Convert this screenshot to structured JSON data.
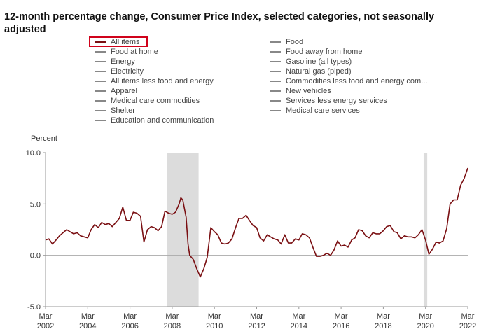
{
  "title": "12-month percentage change, Consumer Price Index, selected categories, not seasonally adjusted",
  "legend": {
    "left": [
      "All items",
      "Food at home",
      "Energy",
      "Electricity",
      "All items less food and energy",
      "Apparel",
      "Medical care commodities",
      "Shelter",
      "Education and communication"
    ],
    "right": [
      "Food",
      "Food away from home",
      "Gasoline (all types)",
      "Natural gas (piped)",
      "Commodities less food and energy com...",
      "New vehicles",
      "Services less energy services",
      "Medical care services"
    ],
    "active": "All items"
  },
  "colors": {
    "series": "#7a0f12",
    "recession": "#dcdcdc",
    "inactive_swatch": "#888888",
    "highlight": "#d0021b"
  },
  "chart_data": {
    "type": "line",
    "ylabel": "Percent",
    "ylim": [
      -5.0,
      10.0
    ],
    "yticks": [
      "10.0",
      "5.0",
      "0.0",
      "-5.0"
    ],
    "ytick_values": [
      10,
      5,
      0,
      -5
    ],
    "xticks": [
      {
        "month": "Mar",
        "year": "2002",
        "t": 2002.17
      },
      {
        "month": "Mar",
        "year": "2004",
        "t": 2004.17
      },
      {
        "month": "Mar",
        "year": "2006",
        "t": 2006.17
      },
      {
        "month": "Mar",
        "year": "2008",
        "t": 2008.17
      },
      {
        "month": "Mar",
        "year": "2010",
        "t": 2010.17
      },
      {
        "month": "Mar",
        "year": "2012",
        "t": 2012.17
      },
      {
        "month": "Mar",
        "year": "2014",
        "t": 2014.17
      },
      {
        "month": "Mar",
        "year": "2016",
        "t": 2016.17
      },
      {
        "month": "Mar",
        "year": "2018",
        "t": 2018.17
      },
      {
        "month": "Mar",
        "year": "2020",
        "t": 2020.17
      },
      {
        "month": "Mar",
        "year": "2022",
        "t": 2022.17
      }
    ],
    "xlim": [
      2002.17,
      2022.17
    ],
    "recessions": [
      [
        2007.92,
        2009.42
      ],
      [
        2020.08,
        2020.25
      ]
    ],
    "series": [
      {
        "name": "All items",
        "points": [
          [
            2002.17,
            1.5
          ],
          [
            2002.33,
            1.6
          ],
          [
            2002.5,
            1.1
          ],
          [
            2002.67,
            1.5
          ],
          [
            2002.83,
            1.9
          ],
          [
            2003.0,
            2.2
          ],
          [
            2003.17,
            2.5
          ],
          [
            2003.33,
            2.3
          ],
          [
            2003.5,
            2.1
          ],
          [
            2003.67,
            2.2
          ],
          [
            2003.83,
            1.9
          ],
          [
            2004.0,
            1.8
          ],
          [
            2004.17,
            1.7
          ],
          [
            2004.33,
            2.5
          ],
          [
            2004.5,
            3.0
          ],
          [
            2004.67,
            2.7
          ],
          [
            2004.83,
            3.2
          ],
          [
            2005.0,
            3.0
          ],
          [
            2005.17,
            3.1
          ],
          [
            2005.33,
            2.8
          ],
          [
            2005.5,
            3.2
          ],
          [
            2005.67,
            3.6
          ],
          [
            2005.83,
            4.7
          ],
          [
            2006.0,
            3.4
          ],
          [
            2006.17,
            3.4
          ],
          [
            2006.33,
            4.2
          ],
          [
            2006.5,
            4.1
          ],
          [
            2006.67,
            3.8
          ],
          [
            2006.83,
            1.3
          ],
          [
            2007.0,
            2.5
          ],
          [
            2007.17,
            2.8
          ],
          [
            2007.33,
            2.7
          ],
          [
            2007.5,
            2.4
          ],
          [
            2007.67,
            2.8
          ],
          [
            2007.83,
            4.3
          ],
          [
            2008.0,
            4.1
          ],
          [
            2008.17,
            4.0
          ],
          [
            2008.33,
            4.2
          ],
          [
            2008.5,
            5.0
          ],
          [
            2008.58,
            5.6
          ],
          [
            2008.67,
            5.4
          ],
          [
            2008.83,
            3.7
          ],
          [
            2008.92,
            1.1
          ],
          [
            2009.0,
            0.0
          ],
          [
            2009.17,
            -0.4
          ],
          [
            2009.33,
            -1.3
          ],
          [
            2009.5,
            -2.1
          ],
          [
            2009.67,
            -1.3
          ],
          [
            2009.83,
            -0.2
          ],
          [
            2010.0,
            2.7
          ],
          [
            2010.17,
            2.3
          ],
          [
            2010.33,
            2.0
          ],
          [
            2010.5,
            1.2
          ],
          [
            2010.67,
            1.1
          ],
          [
            2010.83,
            1.2
          ],
          [
            2011.0,
            1.6
          ],
          [
            2011.17,
            2.7
          ],
          [
            2011.33,
            3.6
          ],
          [
            2011.5,
            3.6
          ],
          [
            2011.67,
            3.9
          ],
          [
            2011.83,
            3.4
          ],
          [
            2012.0,
            2.9
          ],
          [
            2012.17,
            2.7
          ],
          [
            2012.33,
            1.7
          ],
          [
            2012.5,
            1.4
          ],
          [
            2012.67,
            2.0
          ],
          [
            2012.83,
            1.8
          ],
          [
            2013.0,
            1.6
          ],
          [
            2013.17,
            1.5
          ],
          [
            2013.33,
            1.1
          ],
          [
            2013.5,
            2.0
          ],
          [
            2013.67,
            1.2
          ],
          [
            2013.83,
            1.2
          ],
          [
            2014.0,
            1.6
          ],
          [
            2014.17,
            1.5
          ],
          [
            2014.33,
            2.1
          ],
          [
            2014.5,
            2.0
          ],
          [
            2014.67,
            1.7
          ],
          [
            2014.83,
            0.8
          ],
          [
            2015.0,
            -0.1
          ],
          [
            2015.17,
            -0.1
          ],
          [
            2015.33,
            0.0
          ],
          [
            2015.5,
            0.2
          ],
          [
            2015.67,
            0.0
          ],
          [
            2015.83,
            0.5
          ],
          [
            2016.0,
            1.4
          ],
          [
            2016.17,
            0.9
          ],
          [
            2016.33,
            1.0
          ],
          [
            2016.5,
            0.8
          ],
          [
            2016.67,
            1.5
          ],
          [
            2016.83,
            1.7
          ],
          [
            2017.0,
            2.5
          ],
          [
            2017.17,
            2.4
          ],
          [
            2017.33,
            1.9
          ],
          [
            2017.5,
            1.7
          ],
          [
            2017.67,
            2.2
          ],
          [
            2017.83,
            2.1
          ],
          [
            2018.0,
            2.1
          ],
          [
            2018.17,
            2.4
          ],
          [
            2018.33,
            2.8
          ],
          [
            2018.5,
            2.9
          ],
          [
            2018.67,
            2.3
          ],
          [
            2018.83,
            2.2
          ],
          [
            2019.0,
            1.6
          ],
          [
            2019.17,
            1.9
          ],
          [
            2019.33,
            1.8
          ],
          [
            2019.5,
            1.8
          ],
          [
            2019.67,
            1.7
          ],
          [
            2019.83,
            2.0
          ],
          [
            2020.0,
            2.5
          ],
          [
            2020.17,
            1.5
          ],
          [
            2020.33,
            0.1
          ],
          [
            2020.5,
            0.6
          ],
          [
            2020.67,
            1.3
          ],
          [
            2020.83,
            1.2
          ],
          [
            2021.0,
            1.4
          ],
          [
            2021.17,
            2.6
          ],
          [
            2021.33,
            5.0
          ],
          [
            2021.5,
            5.4
          ],
          [
            2021.67,
            5.4
          ],
          [
            2021.83,
            6.8
          ],
          [
            2022.0,
            7.5
          ],
          [
            2022.17,
            8.5
          ]
        ]
      }
    ]
  }
}
